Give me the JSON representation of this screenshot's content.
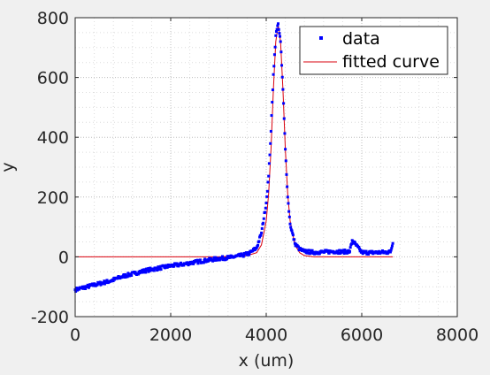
{
  "chart_data": {
    "type": "scatter",
    "xlabel": "x (um)",
    "ylabel": "y",
    "xlim": [
      0,
      8000
    ],
    "ylim": [
      -200,
      800
    ],
    "x_ticks": [
      "0",
      "2000",
      "4000",
      "6000",
      "8000"
    ],
    "y_ticks": [
      "-200",
      "0",
      "200",
      "400",
      "600",
      "800"
    ],
    "grid": "on",
    "minor_grid": "on",
    "legend_placement": "top-right",
    "colors": {
      "data": "#0000ff",
      "fit": "#d9000d",
      "axes": "#262626",
      "plot_bg": "#ffffff",
      "figure_bg": "#f0f0f0"
    },
    "series": [
      {
        "name": "data",
        "style": "markers",
        "x": [
          0,
          250,
          500,
          750,
          1000,
          1250,
          1500,
          1750,
          2000,
          2250,
          2500,
          2750,
          3000,
          3250,
          3500,
          3650,
          3800,
          3900,
          4000,
          4050,
          4100,
          4150,
          4200,
          4250,
          4300,
          4350,
          4400,
          4450,
          4500,
          4600,
          4700,
          4800,
          5000,
          5200,
          5400,
          5600,
          5750,
          5800,
          6000,
          6200,
          6400,
          6600,
          6650
        ],
        "y": [
          -110,
          -100,
          -90,
          -80,
          -65,
          -55,
          -45,
          -38,
          -30,
          -25,
          -18,
          -12,
          -6,
          -2,
          5,
          12,
          30,
          80,
          180,
          270,
          420,
          610,
          740,
          780,
          720,
          560,
          360,
          200,
          110,
          45,
          25,
          18,
          15,
          16,
          18,
          17,
          18,
          55,
          15,
          14,
          15,
          16,
          45
        ]
      },
      {
        "name": "fitted curve",
        "style": "line",
        "x": [
          0,
          1000,
          2000,
          3000,
          3600,
          3800,
          3900,
          4000,
          4050,
          4100,
          4150,
          4200,
          4250,
          4300,
          4350,
          4400,
          4450,
          4500,
          4600,
          4700,
          4800,
          5000,
          6000,
          6650
        ],
        "y": [
          0,
          0,
          0,
          0,
          4,
          14,
          40,
          120,
          210,
          360,
          560,
          720,
          775,
          720,
          560,
          360,
          210,
          120,
          40,
          14,
          4,
          0,
          0,
          0
        ]
      }
    ]
  }
}
